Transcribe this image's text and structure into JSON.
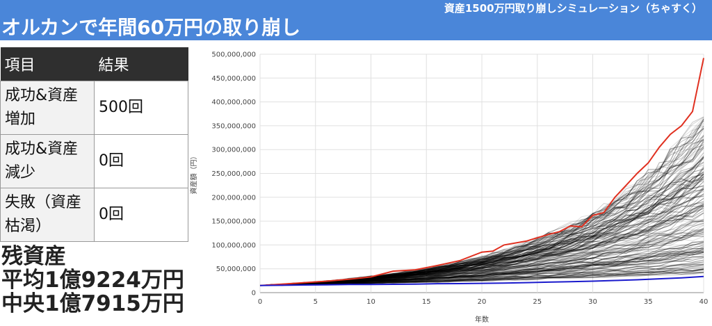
{
  "header": {
    "subtitle": "資産1500万円取り崩しシミュレーション（ちゃすく）",
    "title": "オルカンで年間60万円の取り崩し"
  },
  "results_table": {
    "headers": [
      "項目",
      "結果"
    ],
    "rows": [
      {
        "label": "成功&資産増加",
        "value": "500回"
      },
      {
        "label": "成功&資産減少",
        "value": "0回"
      },
      {
        "label": "失敗（資産枯渇）",
        "value": "0回"
      }
    ]
  },
  "summary": {
    "line1": "残資産",
    "line2": "平均1億9224万円",
    "line3": "中央1億7915万円"
  },
  "chart_data": {
    "type": "line",
    "xlabel": "年数",
    "ylabel": "資産額（円）",
    "xlim": [
      0,
      40
    ],
    "ylim": [
      0,
      500000000
    ],
    "grid": true,
    "x_ticks": [
      "0",
      "5",
      "10",
      "15",
      "20",
      "25",
      "30",
      "35",
      "40"
    ],
    "y_ticks": [
      "0",
      "50,000,000",
      "100,000,000",
      "150,000,000",
      "200,000,000",
      "250,000,000",
      "300,000,000",
      "350,000,000",
      "400,000,000",
      "450,000,000",
      "500,000,000"
    ],
    "simulation_count": 500,
    "colors": {
      "best": "#e03020",
      "worst": "#1a1acc",
      "simulations": "#000000"
    },
    "series": [
      {
        "role": "best",
        "x": [
          0,
          2,
          4,
          6,
          8,
          10,
          12,
          14,
          16,
          18,
          20,
          21,
          22,
          24,
          26,
          27,
          28,
          29,
          30,
          31,
          32,
          33,
          34,
          35,
          36,
          37,
          38,
          39,
          40
        ],
        "y": [
          15000000,
          18000000,
          21000000,
          24000000,
          28000000,
          33000000,
          45000000,
          48000000,
          57000000,
          67000000,
          85000000,
          87000000,
          100000000,
          108000000,
          122000000,
          128000000,
          140000000,
          138000000,
          162000000,
          168000000,
          200000000,
          225000000,
          250000000,
          272000000,
          305000000,
          332000000,
          350000000,
          380000000,
          492000000
        ]
      },
      {
        "role": "worst",
        "x": [
          0,
          2,
          4,
          6,
          8,
          10,
          12,
          14,
          16,
          18,
          20,
          22,
          24,
          26,
          28,
          30,
          32,
          34,
          36,
          38,
          40
        ],
        "y": [
          15000000,
          15500000,
          16000000,
          16500000,
          17000000,
          17200000,
          17500000,
          18000000,
          18800000,
          19000000,
          19500000,
          20000000,
          21000000,
          22000000,
          23000000,
          24000000,
          25500000,
          27000000,
          29000000,
          31000000,
          34000000
        ]
      }
    ]
  }
}
